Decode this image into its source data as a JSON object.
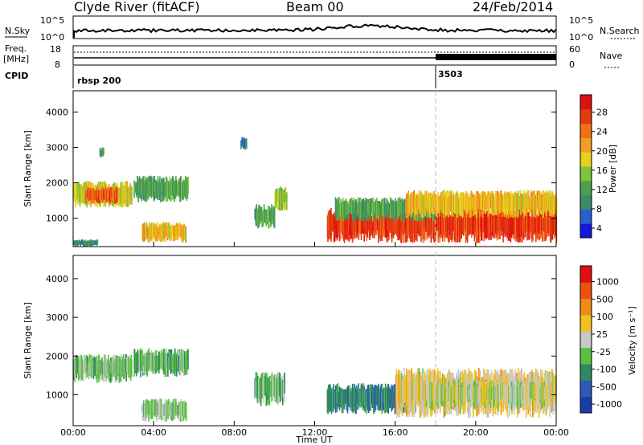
{
  "header": {
    "station": "Clyde River (fitACF)",
    "beam": "Beam 00",
    "date": "24/Feb/2014"
  },
  "strips": {
    "nsky_label": "N.Sky",
    "nsky_ticks": [
      "10^5",
      "10^0"
    ],
    "nsearch_label": "N.Search",
    "nsearch_ticks": [
      "10^5",
      "10^0"
    ],
    "freq_label": "Freq.",
    "freq_unit": "[MHz]",
    "freq_ticks": [
      "18",
      "8"
    ],
    "nave_label": "Nave",
    "nave_ticks": [
      "60",
      "0"
    ],
    "cpid_label": "CPID",
    "cpid_values": [
      "rbsp 200",
      "3503"
    ]
  },
  "chart_data": [
    {
      "type": "heatmap",
      "name": "power",
      "ylabel": "Slant Range [km]",
      "yticks": [
        "4000",
        "3000",
        "2000",
        "1000"
      ],
      "ylim": [
        200,
        4600
      ],
      "xlim": [
        0,
        24
      ],
      "colorbar": {
        "label": "Power [dB]",
        "ticks": [
          "28",
          "24",
          "20",
          "16",
          "12",
          "8",
          "4"
        ],
        "range": [
          0,
          30
        ]
      },
      "regions": [
        {
          "t0": 0.0,
          "t1": 2.9,
          "r0": 1300,
          "r1": 2050,
          "v": 16
        },
        {
          "t0": 0.6,
          "t1": 2.2,
          "r0": 1400,
          "r1": 1900,
          "v": 24
        },
        {
          "t0": 3.0,
          "t1": 5.7,
          "r0": 1450,
          "r1": 2200,
          "v": 10
        },
        {
          "t0": 0.0,
          "t1": 1.2,
          "r0": 200,
          "r1": 400,
          "v": 8
        },
        {
          "t0": 3.4,
          "t1": 5.6,
          "r0": 300,
          "r1": 900,
          "v": 18
        },
        {
          "t0": 1.3,
          "t1": 1.5,
          "r0": 2700,
          "r1": 3000,
          "v": 8
        },
        {
          "t0": 8.3,
          "t1": 8.6,
          "r0": 2900,
          "r1": 3300,
          "v": 6
        },
        {
          "t0": 9.0,
          "t1": 10.0,
          "r0": 700,
          "r1": 1400,
          "v": 10
        },
        {
          "t0": 10.0,
          "t1": 10.6,
          "r0": 1200,
          "r1": 1900,
          "v": 14
        },
        {
          "t0": 12.6,
          "t1": 24.0,
          "r0": 300,
          "r1": 1300,
          "v": 26
        },
        {
          "t0": 13.0,
          "t1": 18.0,
          "r0": 900,
          "r1": 1600,
          "v": 10
        },
        {
          "t0": 16.5,
          "t1": 24.0,
          "r0": 1000,
          "r1": 1800,
          "v": 18
        }
      ]
    },
    {
      "type": "heatmap",
      "name": "velocity",
      "xlabel": "Time UT",
      "ylabel": "Slant Range [km]",
      "xticks": [
        "00:00",
        "04:00",
        "08:00",
        "12:00",
        "16:00",
        "20:00",
        "00:00"
      ],
      "yticks": [
        "4000",
        "3000",
        "2000",
        "1000"
      ],
      "ylim": [
        200,
        4600
      ],
      "xlim": [
        0,
        24
      ],
      "colorbar": {
        "label": "Velocity [m s⁻¹]",
        "ticks": [
          "1000",
          "500",
          "100",
          "25",
          "-25",
          "-100",
          "-500",
          "-1000"
        ],
        "range": [
          -1200,
          1200
        ]
      },
      "regions": [
        {
          "t0": 0.0,
          "t1": 2.9,
          "r0": 1300,
          "r1": 2050,
          "v": -200
        },
        {
          "t0": 3.0,
          "t1": 5.7,
          "r0": 1450,
          "r1": 2200,
          "v": -300
        },
        {
          "t0": 3.4,
          "t1": 5.6,
          "r0": 300,
          "r1": 900,
          "v": -150
        },
        {
          "t0": 9.0,
          "t1": 10.5,
          "r0": 700,
          "r1": 1600,
          "v": -300
        },
        {
          "t0": 12.6,
          "t1": 17.0,
          "r0": 500,
          "r1": 1300,
          "v": -600
        },
        {
          "t0": 16.0,
          "t1": 24.0,
          "r0": 400,
          "r1": 1700,
          "v": 150
        },
        {
          "t0": 17.5,
          "t1": 23.5,
          "r0": 600,
          "r1": 1400,
          "v": 0
        }
      ]
    }
  ],
  "colors": {
    "power_scale": [
      "#1515e0",
      "#2a5fd0",
      "#3d8a6a",
      "#4aa050",
      "#7fc43a",
      "#e6d21c",
      "#f0a020",
      "#f07016",
      "#e43a10",
      "#e01010"
    ],
    "velocity_scale": [
      "#1a3ea8",
      "#2e5bb8",
      "#2e8a5e",
      "#58c040",
      "#c8c8c8",
      "#f0c020",
      "#f08a18",
      "#ee5010",
      "#e01010"
    ]
  }
}
